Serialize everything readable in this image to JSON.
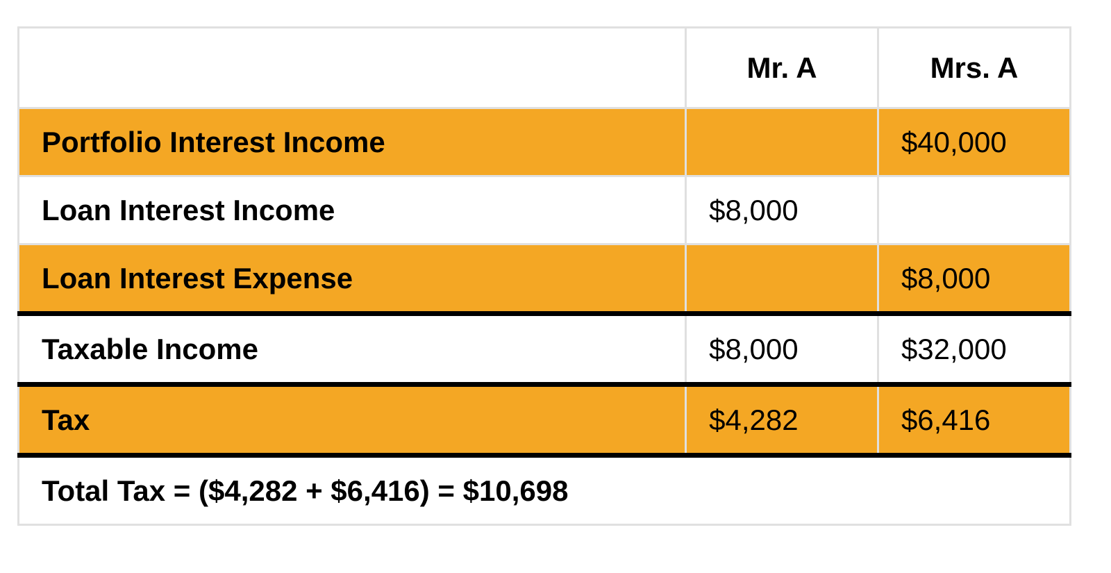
{
  "columns": [
    "",
    "Mr. A",
    "Mrs. A"
  ],
  "rows": [
    {
      "label": "Portfolio Interest Income",
      "mr_a": "",
      "mrs_a": "$40,000"
    },
    {
      "label": "Loan Interest Income",
      "mr_a": "$8,000",
      "mrs_a": ""
    },
    {
      "label": "Loan Interest Expense",
      "mr_a": "",
      "mrs_a": "$8,000"
    },
    {
      "label": "Taxable Income",
      "mr_a": "$8,000",
      "mrs_a": "$32,000"
    },
    {
      "label": "Tax",
      "mr_a": "$4,282",
      "mrs_a": "$6,416"
    }
  ],
  "total": "Total Tax = ($4,282 + $6,416) = $10,698",
  "colors": {
    "highlight": "#f4a724",
    "grid": "#e0e0e0",
    "rule": "#000000"
  }
}
